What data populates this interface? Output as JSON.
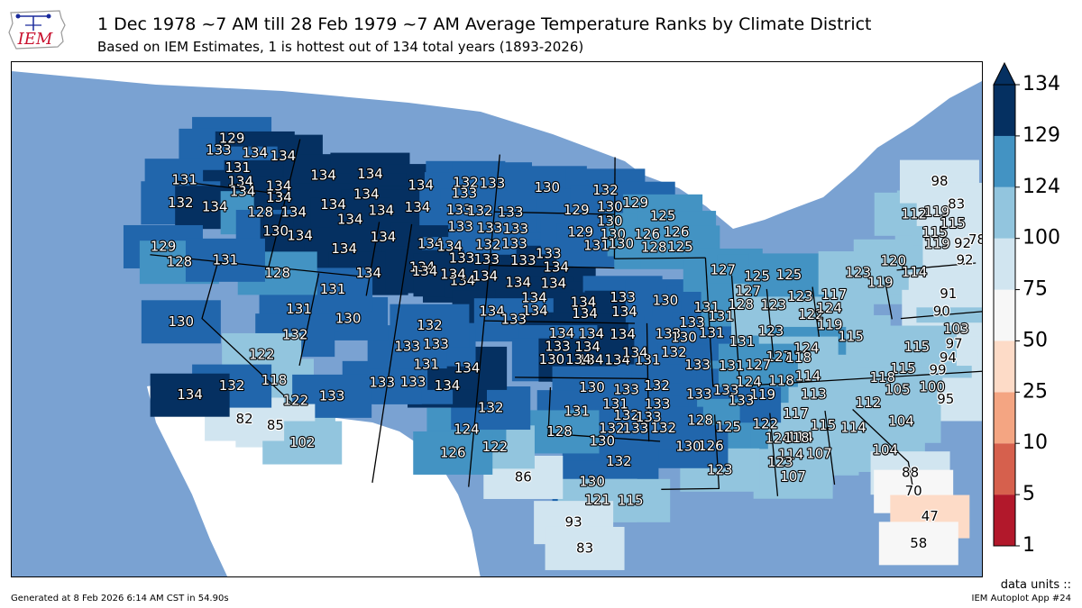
{
  "header": {
    "title": "1 Dec 1978 ~7 AM till 28 Feb 1979 ~7 AM Average Temperature Ranks by Climate District",
    "subtitle": "Based on IEM Estimates, 1 is hottest out of 134 total years (1893-2026)",
    "logo_text": "IEM"
  },
  "colors": {
    "ocean": "#7aa2d2",
    "land_other": "#ffffff",
    "bins": [
      "#b2182b",
      "#d6604d",
      "#f4a582",
      "#fddbc7",
      "#f7f7f7",
      "#d1e5f0",
      "#92c5de",
      "#4393c3",
      "#2166ac",
      "#053061"
    ]
  },
  "colorbar": {
    "ticks": [
      "1",
      "5",
      "10",
      "25",
      "50",
      "75",
      "100",
      "124",
      "129",
      "134"
    ]
  },
  "chart_data": {
    "type": "map",
    "title": "1 Dec 1978 ~7 AM till 28 Feb 1979 ~7 AM Average Temperature Ranks by Climate District",
    "bin_edges": [
      1,
      5,
      10,
      25,
      50,
      75,
      100,
      124,
      129,
      134
    ],
    "labels": [
      {
        "lon": -121.3,
        "lat": 48.6,
        "v": 129
      },
      {
        "lon": -121.9,
        "lat": 47.9,
        "v": 133
      },
      {
        "lon": -119.6,
        "lat": 48.0,
        "v": 134
      },
      {
        "lon": -117.8,
        "lat": 48.0,
        "v": 134
      },
      {
        "lon": -120.4,
        "lat": 47.1,
        "v": 131
      },
      {
        "lon": -120.0,
        "lat": 46.4,
        "v": 134
      },
      {
        "lon": -117.6,
        "lat": 46.4,
        "v": 134
      },
      {
        "lon": -123.4,
        "lat": 46.1,
        "v": 131
      },
      {
        "lon": -119.7,
        "lat": 45.9,
        "v": 134
      },
      {
        "lon": -117.4,
        "lat": 45.8,
        "v": 134
      },
      {
        "lon": -123.2,
        "lat": 44.9,
        "v": 132
      },
      {
        "lon": -121.1,
        "lat": 44.9,
        "v": 134
      },
      {
        "lon": -118.3,
        "lat": 44.9,
        "v": 128
      },
      {
        "lon": -116.3,
        "lat": 45.1,
        "v": 134
      },
      {
        "lon": -117.1,
        "lat": 44.0,
        "v": 130
      },
      {
        "lon": -115.6,
        "lat": 43.9,
        "v": 134
      },
      {
        "lon": -115.0,
        "lat": 47.2,
        "v": 134
      },
      {
        "lon": -112.1,
        "lat": 47.5,
        "v": 134
      },
      {
        "lon": -108.8,
        "lat": 47.1,
        "v": 134
      },
      {
        "lon": -112.1,
        "lat": 46.4,
        "v": 134
      },
      {
        "lon": -108.8,
        "lat": 45.9,
        "v": 134
      },
      {
        "lon": -114.0,
        "lat": 45.7,
        "v": 134
      },
      {
        "lon": -111.0,
        "lat": 45.6,
        "v": 134
      },
      {
        "lon": -112.8,
        "lat": 45.0,
        "v": 134
      },
      {
        "lon": -110.6,
        "lat": 44.2,
        "v": 134
      },
      {
        "lon": -107.7,
        "lat": 44.0,
        "v": 134
      },
      {
        "lon": -112.8,
        "lat": 43.4,
        "v": 134
      },
      {
        "lon": -105.5,
        "lat": 42.1,
        "v": 134
      },
      {
        "lon": -108.0,
        "lat": 42.7,
        "v": 134
      },
      {
        "lon": -111.1,
        "lat": 42.2,
        "v": 134
      },
      {
        "lon": -106.0,
        "lat": 47.4,
        "v": 132
      },
      {
        "lon": -104.3,
        "lat": 47.4,
        "v": 133
      },
      {
        "lon": -106.0,
        "lat": 46.8,
        "v": 133
      },
      {
        "lon": -106.2,
        "lat": 45.9,
        "v": 133
      },
      {
        "lon": -104.9,
        "lat": 45.9,
        "v": 132
      },
      {
        "lon": -103.0,
        "lat": 45.9,
        "v": 133
      },
      {
        "lon": -106.0,
        "lat": 45.0,
        "v": 133
      },
      {
        "lon": -104.2,
        "lat": 45.0,
        "v": 133
      },
      {
        "lon": -102.6,
        "lat": 45.0,
        "v": 133
      },
      {
        "lon": -106.5,
        "lat": 43.9,
        "v": 134
      },
      {
        "lon": -104.2,
        "lat": 44.1,
        "v": 132
      },
      {
        "lon": -102.6,
        "lat": 44.2,
        "v": 133
      },
      {
        "lon": -100.5,
        "lat": 43.7,
        "v": 133
      },
      {
        "lon": -105.7,
        "lat": 43.3,
        "v": 133
      },
      {
        "lon": -104.2,
        "lat": 43.3,
        "v": 133
      },
      {
        "lon": -102.0,
        "lat": 43.3,
        "v": 133
      },
      {
        "lon": -100.0,
        "lat": 43.0,
        "v": 134
      },
      {
        "lon": -107.8,
        "lat": 42.5,
        "v": 134
      },
      {
        "lon": -106.1,
        "lat": 42.4,
        "v": 134
      },
      {
        "lon": -104.2,
        "lat": 42.4,
        "v": 134
      },
      {
        "lon": -102.2,
        "lat": 42.1,
        "v": 134
      },
      {
        "lon": -100.1,
        "lat": 42.1,
        "v": 134
      },
      {
        "lon": -100.8,
        "lat": 47.3,
        "v": 130
      },
      {
        "lon": -97.1,
        "lat": 47.2,
        "v": 132
      },
      {
        "lon": -98.9,
        "lat": 46.1,
        "v": 129
      },
      {
        "lon": -96.8,
        "lat": 46.3,
        "v": 130
      },
      {
        "lon": -95.2,
        "lat": 46.5,
        "v": 129
      },
      {
        "lon": -96.8,
        "lat": 45.5,
        "v": 130
      },
      {
        "lon": -98.6,
        "lat": 44.9,
        "v": 129
      },
      {
        "lon": -96.6,
        "lat": 44.8,
        "v": 130
      },
      {
        "lon": -97.6,
        "lat": 44.2,
        "v": 131
      },
      {
        "lon": -96.1,
        "lat": 44.3,
        "v": 130
      },
      {
        "lon": -93.5,
        "lat": 45.8,
        "v": 125
      },
      {
        "lon": -94.5,
        "lat": 44.8,
        "v": 126
      },
      {
        "lon": -92.7,
        "lat": 44.9,
        "v": 126
      },
      {
        "lon": -94.1,
        "lat": 44.1,
        "v": 128
      },
      {
        "lon": -92.5,
        "lat": 44.1,
        "v": 125
      },
      {
        "lon": -101.2,
        "lat": 41.3,
        "v": 134
      },
      {
        "lon": -98.3,
        "lat": 41.1,
        "v": 134
      },
      {
        "lon": -96.0,
        "lat": 41.4,
        "v": 133
      },
      {
        "lon": -103.6,
        "lat": 40.5,
        "v": 134
      },
      {
        "lon": -101.1,
        "lat": 40.6,
        "v": 134
      },
      {
        "lon": -98.2,
        "lat": 40.5,
        "v": 134
      },
      {
        "lon": -95.9,
        "lat": 40.6,
        "v": 134
      },
      {
        "lon": -102.3,
        "lat": 40.1,
        "v": 133
      },
      {
        "lon": -99.5,
        "lat": 39.4,
        "v": 134
      },
      {
        "lon": -97.8,
        "lat": 39.4,
        "v": 134
      },
      {
        "lon": -96.0,
        "lat": 39.4,
        "v": 134
      },
      {
        "lon": -93.4,
        "lat": 39.4,
        "v": 133
      },
      {
        "lon": -98.0,
        "lat": 38.7,
        "v": 134
      },
      {
        "lon": -99.7,
        "lat": 38.7,
        "v": 133
      },
      {
        "lon": -97.8,
        "lat": 38.0,
        "v": 134
      },
      {
        "lon": -100.0,
        "lat": 38.0,
        "v": 130
      },
      {
        "lon": -98.5,
        "lat": 38.0,
        "v": 134
      },
      {
        "lon": -96.3,
        "lat": 38.0,
        "v": 134
      },
      {
        "lon": -94.6,
        "lat": 38.0,
        "v": 131
      },
      {
        "lon": -95.3,
        "lat": 38.4,
        "v": 134
      },
      {
        "lon": -93.5,
        "lat": 41.2,
        "v": 130
      },
      {
        "lon": -91.1,
        "lat": 40.8,
        "v": 131
      },
      {
        "lon": -92.0,
        "lat": 40.0,
        "v": 133
      },
      {
        "lon": -90.3,
        "lat": 40.3,
        "v": 131
      },
      {
        "lon": -92.5,
        "lat": 39.2,
        "v": 130
      },
      {
        "lon": -90.9,
        "lat": 39.4,
        "v": 131
      },
      {
        "lon": -89.2,
        "lat": 38.9,
        "v": 131
      },
      {
        "lon": -93.1,
        "lat": 38.4,
        "v": 132
      },
      {
        "lon": -91.8,
        "lat": 37.7,
        "v": 133
      },
      {
        "lon": -89.9,
        "lat": 37.6,
        "v": 131
      },
      {
        "lon": -90.0,
        "lat": 42.8,
        "v": 127
      },
      {
        "lon": -88.0,
        "lat": 42.4,
        "v": 125
      },
      {
        "lon": -88.6,
        "lat": 41.6,
        "v": 127
      },
      {
        "lon": -89.1,
        "lat": 40.9,
        "v": 128
      },
      {
        "lon": -87.2,
        "lat": 40.8,
        "v": 123
      },
      {
        "lon": -85.1,
        "lat": 40.2,
        "v": 122
      },
      {
        "lon": -84.0,
        "lat": 40.5,
        "v": 124
      },
      {
        "lon": -83.6,
        "lat": 41.2,
        "v": 117
      },
      {
        "lon": -84.1,
        "lat": 39.6,
        "v": 119
      },
      {
        "lon": -83.0,
        "lat": 38.9,
        "v": 115
      },
      {
        "lon": -87.5,
        "lat": 39.4,
        "v": 123
      },
      {
        "lon": -87.2,
        "lat": 38.0,
        "v": 127
      },
      {
        "lon": -85.6,
        "lat": 38.4,
        "v": 124
      },
      {
        "lon": -86.1,
        "lat": 37.9,
        "v": 118
      },
      {
        "lon": -85.6,
        "lat": 41.2,
        "v": 123
      },
      {
        "lon": -86.1,
        "lat": 42.4,
        "v": 125
      },
      {
        "lon": -82.0,
        "lat": 42.3,
        "v": 123
      },
      {
        "lon": -80.8,
        "lat": 41.7,
        "v": 119
      },
      {
        "lon": -79.8,
        "lat": 42.8,
        "v": 120
      },
      {
        "lon": -78.7,
        "lat": 42.1,
        "v": 114
      },
      {
        "lon": -77.0,
        "lat": 43.5,
        "v": 119
      },
      {
        "lon": -77.0,
        "lat": 44.1,
        "v": 115
      },
      {
        "lon": -78.0,
        "lat": 45.2,
        "v": 112
      },
      {
        "lon": -76.6,
        "lat": 45.2,
        "v": 119
      },
      {
        "lon": -75.8,
        "lat": 44.5,
        "v": 115
      },
      {
        "lon": -75.5,
        "lat": 43.4,
        "v": 92
      },
      {
        "lon": -74.6,
        "lat": 43.5,
        "v": 78
      },
      {
        "lon": -75.6,
        "lat": 42.5,
        "v": 92
      },
      {
        "lon": -76.0,
        "lat": 46.8,
        "v": 98
      },
      {
        "lon": -75.3,
        "lat": 45.5,
        "v": 83
      },
      {
        "lon": -77.0,
        "lat": 40.8,
        "v": 91
      },
      {
        "lon": -77.6,
        "lat": 39.9,
        "v": 90
      },
      {
        "lon": -77.0,
        "lat": 38.9,
        "v": 103
      },
      {
        "lon": -77.3,
        "lat": 38.1,
        "v": 97
      },
      {
        "lon": -77.8,
        "lat": 37.4,
        "v": 94
      },
      {
        "lon": -78.5,
        "lat": 36.8,
        "v": 99
      },
      {
        "lon": -79.0,
        "lat": 35.9,
        "v": 100
      },
      {
        "lon": -78.4,
        "lat": 35.2,
        "v": 95
      },
      {
        "lon": -79.4,
        "lat": 38.1,
        "v": 115
      },
      {
        "lon": -80.4,
        "lat": 37.0,
        "v": 115
      },
      {
        "lon": -81.6,
        "lat": 36.6,
        "v": 118
      },
      {
        "lon": -80.9,
        "lat": 35.9,
        "v": 105
      },
      {
        "lon": -82.6,
        "lat": 35.3,
        "v": 112
      },
      {
        "lon": -81.0,
        "lat": 34.2,
        "v": 104
      },
      {
        "lon": -83.6,
        "lat": 34.0,
        "v": 114
      },
      {
        "lon": -82.1,
        "lat": 32.7,
        "v": 104
      },
      {
        "lon": -81.0,
        "lat": 31.4,
        "v": 88
      },
      {
        "lon": -81.0,
        "lat": 30.4,
        "v": 70
      },
      {
        "lon": -80.4,
        "lat": 29.0,
        "v": 47
      },
      {
        "lon": -81.2,
        "lat": 27.6,
        "v": 58
      },
      {
        "lon": -85.7,
        "lat": 36.9,
        "v": 114
      },
      {
        "lon": -87.2,
        "lat": 36.7,
        "v": 118
      },
      {
        "lon": -85.5,
        "lat": 35.9,
        "v": 113
      },
      {
        "lon": -88.3,
        "lat": 36.0,
        "v": 119
      },
      {
        "lon": -86.6,
        "lat": 34.9,
        "v": 117
      },
      {
        "lon": -85.2,
        "lat": 34.2,
        "v": 115
      },
      {
        "lon": -86.5,
        "lat": 33.6,
        "v": 114
      },
      {
        "lon": -85.6,
        "lat": 32.7,
        "v": 107
      },
      {
        "lon": -89.0,
        "lat": 36.7,
        "v": 124
      },
      {
        "lon": -88.3,
        "lat": 34.4,
        "v": 122
      },
      {
        "lon": -87.7,
        "lat": 33.6,
        "v": 124
      },
      {
        "lon": -86.7,
        "lat": 33.6,
        "v": 118
      },
      {
        "lon": -87.1,
        "lat": 32.7,
        "v": 114
      },
      {
        "lon": -87.7,
        "lat": 32.3,
        "v": 123
      },
      {
        "lon": -87.1,
        "lat": 31.5,
        "v": 107
      },
      {
        "lon": -90.3,
        "lat": 34.3,
        "v": 125
      },
      {
        "lon": -91.3,
        "lat": 33.3,
        "v": 126
      },
      {
        "lon": -90.9,
        "lat": 32.0,
        "v": 123
      },
      {
        "lon": -90.3,
        "lat": 36.3,
        "v": 133
      },
      {
        "lon": -91.8,
        "lat": 36.1,
        "v": 133
      },
      {
        "lon": -89.5,
        "lat": 35.7,
        "v": 133
      },
      {
        "lon": -91.8,
        "lat": 34.7,
        "v": 128
      },
      {
        "lon": -92.5,
        "lat": 33.3,
        "v": 130
      },
      {
        "lon": -88.4,
        "lat": 37.6,
        "v": 127
      },
      {
        "lon": -95.8,
        "lat": 36.4,
        "v": 133
      },
      {
        "lon": -94.1,
        "lat": 36.6,
        "v": 132
      },
      {
        "lon": -94.1,
        "lat": 35.6,
        "v": 133
      },
      {
        "lon": -95.8,
        "lat": 35.0,
        "v": 132
      },
      {
        "lon": -96.4,
        "lat": 35.6,
        "v": 131
      },
      {
        "lon": -97.7,
        "lat": 36.5,
        "v": 130
      },
      {
        "lon": -98.5,
        "lat": 35.2,
        "v": 131
      },
      {
        "lon": -96.6,
        "lat": 34.3,
        "v": 132
      },
      {
        "lon": -95.3,
        "lat": 34.3,
        "v": 133
      },
      {
        "lon": -94.6,
        "lat": 34.9,
        "v": 133
      },
      {
        "lon": -93.8,
        "lat": 34.3,
        "v": 132
      },
      {
        "lon": -97.1,
        "lat": 33.6,
        "v": 130
      },
      {
        "lon": -96.2,
        "lat": 32.5,
        "v": 132
      },
      {
        "lon": -99.4,
        "lat": 34.1,
        "v": 128
      },
      {
        "lon": -97.6,
        "lat": 31.4,
        "v": 130
      },
      {
        "lon": -97.3,
        "lat": 30.4,
        "v": 121
      },
      {
        "lon": -95.6,
        "lat": 30.4,
        "v": 115
      },
      {
        "lon": -98.5,
        "lat": 29.2,
        "v": 93
      },
      {
        "lon": -97.9,
        "lat": 27.8,
        "v": 83
      },
      {
        "lon": -101.2,
        "lat": 31.6,
        "v": 86
      },
      {
        "lon": -102.8,
        "lat": 33.2,
        "v": 122
      },
      {
        "lon": -104.4,
        "lat": 34.1,
        "v": 124
      },
      {
        "lon": -105.0,
        "lat": 32.8,
        "v": 126
      },
      {
        "lon": -103.2,
        "lat": 35.3,
        "v": 132
      },
      {
        "lon": -105.7,
        "lat": 36.4,
        "v": 134
      },
      {
        "lon": -107.6,
        "lat": 36.5,
        "v": 133
      },
      {
        "lon": -109.3,
        "lat": 36.4,
        "v": 133
      },
      {
        "lon": -107.0,
        "lat": 37.5,
        "v": 131
      },
      {
        "lon": -104.7,
        "lat": 37.4,
        "v": 134
      },
      {
        "lon": -106.6,
        "lat": 38.6,
        "v": 133
      },
      {
        "lon": -108.2,
        "lat": 38.4,
        "v": 133
      },
      {
        "lon": -107.1,
        "lat": 39.6,
        "v": 132
      },
      {
        "lon": -111.8,
        "lat": 39.7,
        "v": 130
      },
      {
        "lon": -113.0,
        "lat": 41.2,
        "v": 131
      },
      {
        "lon": -114.7,
        "lat": 40.0,
        "v": 131
      },
      {
        "lon": -114.6,
        "lat": 38.6,
        "v": 132
      },
      {
        "lon": -116.4,
        "lat": 41.8,
        "v": 128
      },
      {
        "lon": -116.2,
        "lat": 37.4,
        "v": 122
      },
      {
        "lon": -115.2,
        "lat": 36.1,
        "v": 118
      },
      {
        "lon": -113.8,
        "lat": 35.1,
        "v": 122
      },
      {
        "lon": -111.9,
        "lat": 35.5,
        "v": 133
      },
      {
        "lon": -114.6,
        "lat": 33.7,
        "v": 85
      },
      {
        "lon": -113.0,
        "lat": 32.9,
        "v": 102
      },
      {
        "lon": -116.3,
        "lat": 33.9,
        "v": 82
      },
      {
        "lon": -117.4,
        "lat": 35.6,
        "v": 132
      },
      {
        "lon": -119.5,
        "lat": 34.9,
        "v": 134
      },
      {
        "lon": -121.1,
        "lat": 38.7,
        "v": 130
      },
      {
        "lon": -123.4,
        "lat": 42.5,
        "v": 129
      },
      {
        "lon": -122.2,
        "lat": 41.8,
        "v": 128
      },
      {
        "lon": -119.6,
        "lat": 42.2,
        "v": 131
      }
    ]
  },
  "footer": {
    "generated": "Generated at 8 Feb 2026 6:14 AM CST in 54.90s",
    "app": "IEM Autoplot App #24",
    "units": "data units ::"
  }
}
